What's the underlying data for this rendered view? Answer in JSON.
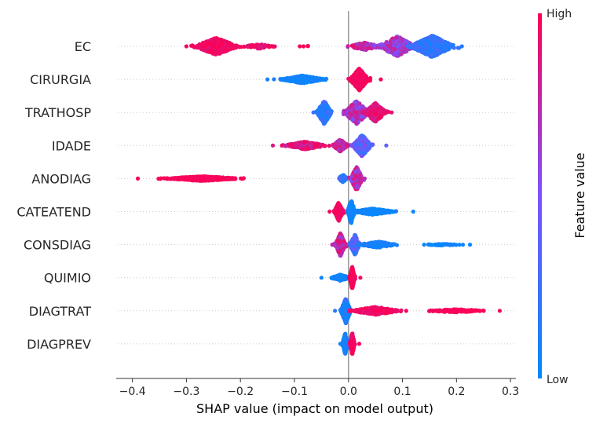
{
  "chart_data": {
    "type": "scatter",
    "subtype": "shap-beeswarm",
    "xlabel": "SHAP value (impact on model output)",
    "ylabel": "",
    "xlim": [
      -0.43,
      0.31
    ],
    "x_ticks": [
      -0.4,
      -0.3,
      -0.2,
      -0.1,
      0.0,
      0.1,
      0.2,
      0.3
    ],
    "x_tick_labels": [
      "−0.4",
      "−0.3",
      "−0.2",
      "−0.1",
      "0.0",
      "0.1",
      "0.2",
      "0.3"
    ],
    "grid": false,
    "zero_line": true,
    "features": [
      {
        "name": "EC",
        "min": -0.3,
        "max": 0.21,
        "clusters": [
          {
            "center": -0.245,
            "spread": 0.035,
            "count": 520,
            "value_low": 0.9,
            "value_high": 1.0,
            "height": 11
          },
          {
            "center": -0.165,
            "spread": 0.025,
            "count": 70,
            "value_low": 0.85,
            "value_high": 1.0,
            "height": 3
          },
          {
            "center": -0.08,
            "spread": 0.01,
            "count": 4,
            "value_low": 0.95,
            "value_high": 1.0,
            "height": 1
          },
          {
            "center": 0.03,
            "spread": 0.025,
            "count": 150,
            "value_low": 0.6,
            "value_high": 0.95,
            "height": 5
          },
          {
            "center": 0.09,
            "spread": 0.03,
            "count": 380,
            "value_low": 0.45,
            "value_high": 0.85,
            "height": 13
          },
          {
            "center": 0.155,
            "spread": 0.035,
            "count": 600,
            "value_low": 0.05,
            "value_high": 0.3,
            "height": 14
          }
        ]
      },
      {
        "name": "CIRURGIA",
        "min": -0.15,
        "max": 0.06,
        "clusters": [
          {
            "center": -0.085,
            "spread": 0.035,
            "count": 350,
            "value_low": 0.0,
            "value_high": 0.12,
            "height": 5
          },
          {
            "center": 0.02,
            "spread": 0.015,
            "count": 500,
            "value_low": 0.92,
            "value_high": 1.0,
            "height": 14
          }
        ]
      },
      {
        "name": "TRATHOSP",
        "min": -0.065,
        "max": 0.08,
        "clusters": [
          {
            "center": -0.045,
            "spread": 0.012,
            "count": 300,
            "value_low": 0.05,
            "value_high": 0.45,
            "height": 15
          },
          {
            "center": 0.015,
            "spread": 0.02,
            "count": 380,
            "value_low": 0.5,
            "value_high": 0.85,
            "height": 15
          },
          {
            "center": 0.05,
            "spread": 0.018,
            "count": 260,
            "value_low": 0.8,
            "value_high": 1.0,
            "height": 12
          }
        ]
      },
      {
        "name": "IDADE",
        "min": -0.14,
        "max": 0.07,
        "clusters": [
          {
            "center": -0.08,
            "spread": 0.035,
            "count": 330,
            "value_low": 0.75,
            "value_high": 1.0,
            "height": 5
          },
          {
            "center": -0.015,
            "spread": 0.012,
            "count": 180,
            "value_low": 0.6,
            "value_high": 0.95,
            "height": 8
          },
          {
            "center": 0.025,
            "spread": 0.015,
            "count": 420,
            "value_low": 0.15,
            "value_high": 0.6,
            "height": 14
          }
        ]
      },
      {
        "name": "ANODIAG",
        "min": -0.39,
        "max": 0.03,
        "clusters": [
          {
            "center": -0.27,
            "spread": 0.06,
            "count": 520,
            "value_low": 0.95,
            "value_high": 1.0,
            "height": 3
          },
          {
            "center": -0.01,
            "spread": 0.008,
            "count": 60,
            "value_low": 0.05,
            "value_high": 0.35,
            "height": 5
          },
          {
            "center": 0.015,
            "spread": 0.01,
            "count": 320,
            "value_low": 0.5,
            "value_high": 0.95,
            "height": 15
          }
        ]
      },
      {
        "name": "CATEATEND",
        "min": -0.035,
        "max": 0.12,
        "clusters": [
          {
            "center": -0.018,
            "spread": 0.007,
            "count": 380,
            "value_low": 0.92,
            "value_high": 1.0,
            "height": 12
          },
          {
            "center": 0.005,
            "spread": 0.006,
            "count": 200,
            "value_low": 0.0,
            "value_high": 0.15,
            "height": 15
          },
          {
            "center": 0.045,
            "spread": 0.035,
            "count": 300,
            "value_low": 0.0,
            "value_high": 0.1,
            "height": 4
          }
        ]
      },
      {
        "name": "CONSDIAG",
        "min": -0.03,
        "max": 0.225,
        "clusters": [
          {
            "center": -0.015,
            "spread": 0.008,
            "count": 340,
            "value_low": 0.6,
            "value_high": 0.95,
            "height": 15
          },
          {
            "center": 0.012,
            "spread": 0.008,
            "count": 240,
            "value_low": 0.1,
            "value_high": 0.45,
            "height": 13
          },
          {
            "center": 0.055,
            "spread": 0.03,
            "count": 170,
            "value_low": 0.0,
            "value_high": 0.15,
            "height": 4
          },
          {
            "center": 0.175,
            "spread": 0.03,
            "count": 50,
            "value_low": 0.0,
            "value_high": 0.1,
            "height": 1
          }
        ]
      },
      {
        "name": "QUIMIO",
        "min": -0.05,
        "max": 0.022,
        "clusters": [
          {
            "center": -0.015,
            "spread": 0.015,
            "count": 180,
            "value_low": 0.0,
            "value_high": 0.12,
            "height": 4
          },
          {
            "center": 0.007,
            "spread": 0.004,
            "count": 450,
            "value_low": 0.92,
            "value_high": 1.0,
            "height": 14
          }
        ]
      },
      {
        "name": "DIAGTRAT",
        "min": -0.025,
        "max": 0.28,
        "clusters": [
          {
            "center": -0.005,
            "spread": 0.008,
            "count": 460,
            "value_low": 0.0,
            "value_high": 0.35,
            "height": 16
          },
          {
            "center": 0.05,
            "spread": 0.04,
            "count": 350,
            "value_low": 0.9,
            "value_high": 1.0,
            "height": 5
          },
          {
            "center": 0.2,
            "spread": 0.05,
            "count": 130,
            "value_low": 0.95,
            "value_high": 1.0,
            "height": 2
          }
        ]
      },
      {
        "name": "DIAGPREV",
        "min": -0.015,
        "max": 0.02,
        "clusters": [
          {
            "center": -0.006,
            "spread": 0.005,
            "count": 260,
            "value_low": 0.0,
            "value_high": 0.15,
            "height": 13
          },
          {
            "center": 0.007,
            "spread": 0.004,
            "count": 260,
            "value_low": 0.9,
            "value_high": 1.0,
            "height": 14
          }
        ]
      }
    ],
    "colorbar": {
      "title": "Feature value",
      "high_label": "High",
      "low_label": "Low",
      "low_color": "#008bfb",
      "mid_color": "#7c52ff",
      "high_color": "#ff0052"
    },
    "colors": {
      "axis": "#333333",
      "zero_line": "#999999",
      "row_guide": "#cccccc"
    }
  }
}
